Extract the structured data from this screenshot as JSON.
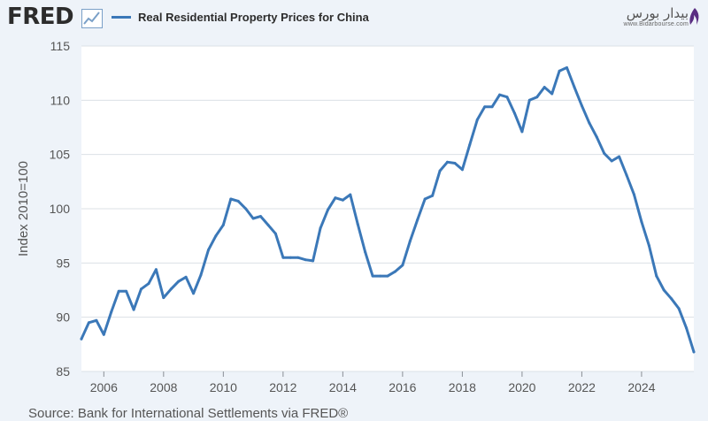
{
  "header": {
    "logo_text": "FRED",
    "legend_label": "Real Residential Property Prices for China",
    "watermark_name": "بیدار بورس",
    "watermark_url": "www.Bidarbourse.com"
  },
  "colors": {
    "series": "#3b78b8",
    "background": "#eef3f9",
    "plot_background": "#ffffff",
    "grid": "#dbe0e6",
    "text": "#555555"
  },
  "source": "Source: Bank for International Settlements via FRED®",
  "chart_data": {
    "type": "line",
    "title": "Real Residential Property Prices for China",
    "ylabel": "Index 2010=100",
    "xlabel": "",
    "xlim": [
      2005.25,
      2025.75
    ],
    "ylim": [
      85,
      115
    ],
    "y_ticks": [
      85,
      90,
      95,
      100,
      105,
      110,
      115
    ],
    "x_ticks": [
      "2006",
      "2008",
      "2010",
      "2012",
      "2014",
      "2016",
      "2018",
      "2020",
      "2022",
      "2024"
    ],
    "grid": true,
    "legend_position": "top-left",
    "series": [
      {
        "name": "Real Residential Property Prices for China",
        "color": "#3b78b8",
        "x": [
          2005.25,
          2005.5,
          2005.75,
          2006.0,
          2006.25,
          2006.5,
          2006.75,
          2007.0,
          2007.25,
          2007.5,
          2007.75,
          2008.0,
          2008.25,
          2008.5,
          2008.75,
          2009.0,
          2009.25,
          2009.5,
          2009.75,
          2010.0,
          2010.25,
          2010.5,
          2010.75,
          2011.0,
          2011.25,
          2011.5,
          2011.75,
          2012.0,
          2012.25,
          2012.5,
          2012.75,
          2013.0,
          2013.25,
          2013.5,
          2013.75,
          2014.0,
          2014.25,
          2014.5,
          2014.75,
          2015.0,
          2015.25,
          2015.5,
          2015.75,
          2016.0,
          2016.25,
          2016.5,
          2016.75,
          2017.0,
          2017.25,
          2017.5,
          2017.75,
          2018.0,
          2018.25,
          2018.5,
          2018.75,
          2019.0,
          2019.25,
          2019.5,
          2019.75,
          2020.0,
          2020.25,
          2020.5,
          2020.75,
          2021.0,
          2021.25,
          2021.5,
          2021.75,
          2022.0,
          2022.25,
          2022.5,
          2022.75,
          2023.0,
          2023.25,
          2023.5,
          2023.75,
          2024.0,
          2024.25,
          2024.5,
          2024.75,
          2025.0,
          2025.25,
          2025.5,
          2025.75
        ],
        "values": [
          88.0,
          89.5,
          89.7,
          88.4,
          90.5,
          92.4,
          92.4,
          90.7,
          92.6,
          93.1,
          94.4,
          91.8,
          92.6,
          93.3,
          93.7,
          92.2,
          93.9,
          96.2,
          97.5,
          98.5,
          100.9,
          100.7,
          100.0,
          99.1,
          99.3,
          98.5,
          97.7,
          95.5,
          95.5,
          95.5,
          95.3,
          95.2,
          98.2,
          99.9,
          101.0,
          100.8,
          101.3,
          98.6,
          96.0,
          93.8,
          93.8,
          93.8,
          94.2,
          94.8,
          97.0,
          99.0,
          100.9,
          101.2,
          103.5,
          104.3,
          104.2,
          103.6,
          105.9,
          108.2,
          109.4,
          109.4,
          110.5,
          110.3,
          108.8,
          107.1,
          110.0,
          110.3,
          111.2,
          110.6,
          112.7,
          113.0,
          111.2,
          109.5,
          107.9,
          106.6,
          105.1,
          104.4,
          104.8,
          103.1,
          101.3,
          98.8,
          96.6,
          93.8,
          92.5,
          91.7,
          90.8,
          89.0,
          86.8
        ]
      }
    ]
  }
}
